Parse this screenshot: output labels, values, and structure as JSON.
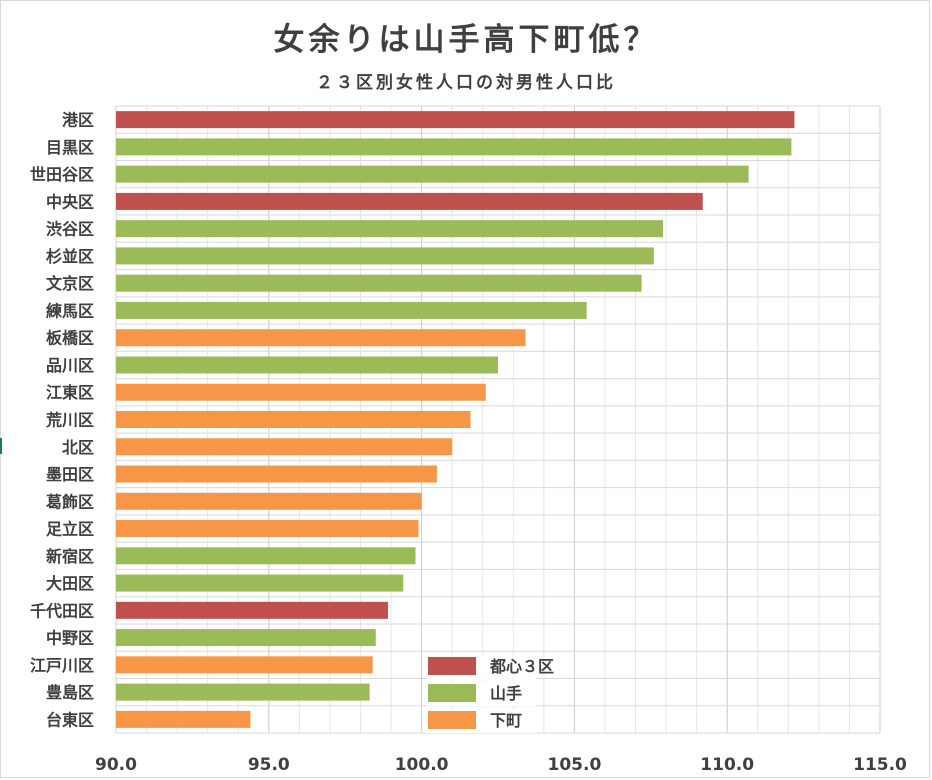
{
  "chart_data": {
    "type": "bar",
    "orientation": "horizontal",
    "title": "女余りは山手高下町低？",
    "subtitle": "２３区別女性人口の対男性人口比",
    "xlim": [
      90,
      115
    ],
    "xticks": [
      "90.0",
      "95.0",
      "100.0",
      "105.0",
      "110.0",
      "115.0"
    ],
    "grid": true,
    "legend_position": "bottom-center",
    "groups": [
      {
        "key": "toshin",
        "name": "都心３区",
        "color": "#c0504d"
      },
      {
        "key": "yamanote",
        "name": "山手",
        "color": "#9bbb59"
      },
      {
        "key": "shitamachi",
        "name": "下町",
        "color": "#f79646"
      }
    ],
    "bars": [
      {
        "label": "港区",
        "value": 112.2,
        "group": "toshin"
      },
      {
        "label": "目黒区",
        "value": 112.1,
        "group": "yamanote"
      },
      {
        "label": "世田谷区",
        "value": 110.7,
        "group": "yamanote"
      },
      {
        "label": "中央区",
        "value": 109.2,
        "group": "toshin"
      },
      {
        "label": "渋谷区",
        "value": 107.9,
        "group": "yamanote"
      },
      {
        "label": "杉並区",
        "value": 107.6,
        "group": "yamanote"
      },
      {
        "label": "文京区",
        "value": 107.2,
        "group": "yamanote"
      },
      {
        "label": "練馬区",
        "value": 105.4,
        "group": "yamanote"
      },
      {
        "label": "板橋区",
        "value": 103.4,
        "group": "shitamachi"
      },
      {
        "label": "品川区",
        "value": 102.5,
        "group": "yamanote"
      },
      {
        "label": "江東区",
        "value": 102.1,
        "group": "shitamachi"
      },
      {
        "label": "荒川区",
        "value": 101.6,
        "group": "shitamachi"
      },
      {
        "label": "北区",
        "value": 101.0,
        "group": "shitamachi"
      },
      {
        "label": "墨田区",
        "value": 100.5,
        "group": "shitamachi"
      },
      {
        "label": "葛飾区",
        "value": 100.0,
        "group": "shitamachi"
      },
      {
        "label": "足立区",
        "value": 99.9,
        "group": "shitamachi"
      },
      {
        "label": "新宿区",
        "value": 99.8,
        "group": "yamanote"
      },
      {
        "label": "大田区",
        "value": 99.4,
        "group": "yamanote"
      },
      {
        "label": "千代田区",
        "value": 98.9,
        "group": "toshin"
      },
      {
        "label": "中野区",
        "value": 98.5,
        "group": "yamanote"
      },
      {
        "label": "江戸川区",
        "value": 98.4,
        "group": "shitamachi"
      },
      {
        "label": "豊島区",
        "value": 98.3,
        "group": "yamanote"
      },
      {
        "label": "台東区",
        "value": 94.4,
        "group": "shitamachi"
      }
    ]
  }
}
